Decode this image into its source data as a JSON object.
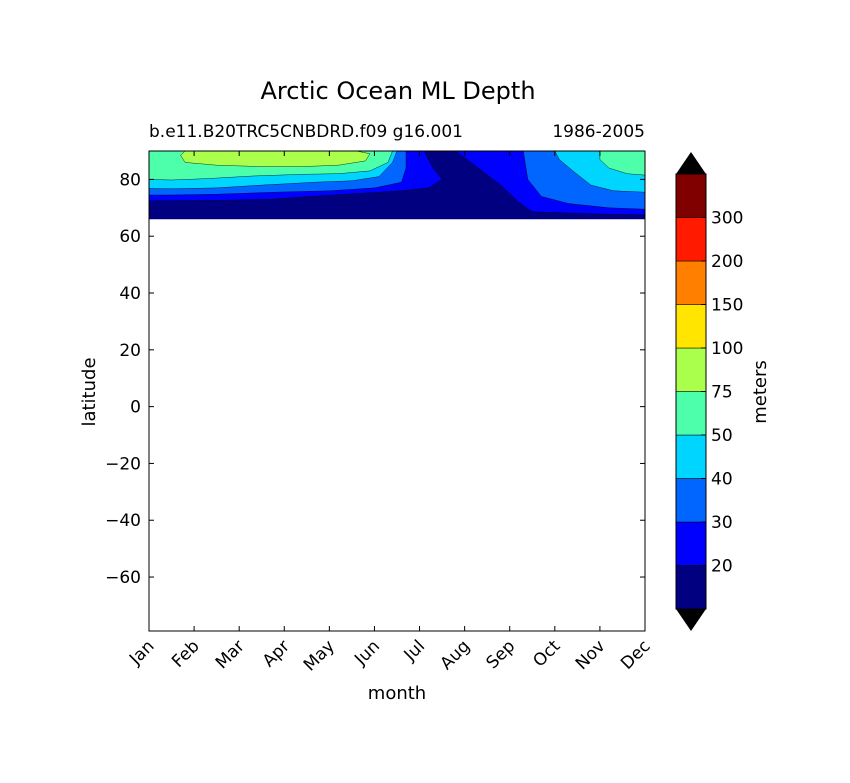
{
  "chart_data": {
    "type": "heatmap",
    "title": "Arctic Ocean ML Depth",
    "subtitle_left": "b.e11.B20TRC5CNBDRD.f09 g16.001",
    "subtitle_right": "1986-2005",
    "xlabel": "month",
    "ylabel": "latitude",
    "x_categories": [
      "Jan",
      "Feb",
      "Mar",
      "Apr",
      "May",
      "Jun",
      "Jul",
      "Aug",
      "Sep",
      "Oct",
      "Nov",
      "Dec"
    ],
    "ylim": [
      -79,
      90
    ],
    "yticks": [
      80,
      60,
      40,
      20,
      0,
      -20,
      -40,
      -60
    ],
    "ytick_labels": [
      "80",
      "60",
      "40",
      "20",
      "0",
      "−20",
      "−40",
      "−60"
    ],
    "colorbar": {
      "label": "meters",
      "levels": [
        10,
        20,
        30,
        40,
        50,
        75,
        100,
        150,
        200,
        300,
        400
      ],
      "tick_labels": [
        "20",
        "30",
        "40",
        "50",
        "75",
        "100",
        "150",
        "200",
        "300"
      ],
      "colors": [
        "#000080",
        "#0000ff",
        "#0066ff",
        "#00d5ff",
        "#4dffaa",
        "#aaff4d",
        "#ffe500",
        "#ff8000",
        "#ff1a00",
        "#800000"
      ],
      "extend": "both"
    },
    "data_lat_range": [
      66,
      90
    ],
    "contour_bands": [
      {
        "level": "10-20",
        "color": "#000080",
        "boundary": [
          [
            0,
            90
          ],
          [
            11,
            90
          ],
          [
            11,
            66
          ],
          [
            0,
            66
          ]
        ]
      },
      {
        "level": "20-30",
        "color": "#0000ff",
        "boundary": [
          [
            0,
            90
          ],
          [
            6.1,
            90
          ],
          [
            6.3,
            84
          ],
          [
            6.5,
            80
          ],
          [
            6.2,
            77
          ],
          [
            5.6,
            76
          ],
          [
            4.6,
            75
          ],
          [
            3.6,
            74
          ],
          [
            2.7,
            73
          ],
          [
            1.5,
            72.6
          ],
          [
            0.5,
            72.5
          ],
          [
            0,
            72.5
          ]
        ]
      },
      {
        "level": "20-30 right",
        "color": "#0000ff",
        "boundary": [
          [
            6.8,
            90
          ],
          [
            11,
            90
          ],
          [
            11,
            67.5
          ],
          [
            10,
            67.8
          ],
          [
            9.2,
            68.2
          ],
          [
            8.5,
            68.6
          ],
          [
            8.2,
            72
          ],
          [
            7.8,
            78
          ],
          [
            7.3,
            84
          ]
        ]
      },
      {
        "level": "30-40",
        "color": "#0066ff",
        "boundary": [
          [
            0,
            90
          ],
          [
            5.7,
            90
          ],
          [
            5.7,
            84
          ],
          [
            5.6,
            79
          ],
          [
            5.0,
            77
          ],
          [
            4.0,
            76
          ],
          [
            2.8,
            75.5
          ],
          [
            1.5,
            74.8
          ],
          [
            0.5,
            74.5
          ],
          [
            0,
            74.5
          ]
        ]
      },
      {
        "level": "30-40 right",
        "color": "#0066ff",
        "boundary": [
          [
            8.3,
            90
          ],
          [
            11,
            90
          ],
          [
            11,
            69.5
          ],
          [
            10.2,
            70
          ],
          [
            9.3,
            71.5
          ],
          [
            8.7,
            74
          ],
          [
            8.4,
            80
          ]
        ]
      },
      {
        "level": "40-50",
        "color": "#00d5ff",
        "boundary": [
          [
            0,
            90
          ],
          [
            5.5,
            90
          ],
          [
            5.4,
            86
          ],
          [
            5.1,
            81
          ],
          [
            4.5,
            79.5
          ],
          [
            3.7,
            79
          ],
          [
            2.5,
            78
          ],
          [
            1.5,
            77
          ],
          [
            0.5,
            76.7
          ],
          [
            0,
            76.8
          ]
        ]
      },
      {
        "level": "40-50 right",
        "color": "#00d5ff",
        "boundary": [
          [
            9.0,
            90
          ],
          [
            11,
            90
          ],
          [
            11,
            75.5
          ],
          [
            10.3,
            76
          ],
          [
            9.8,
            78
          ],
          [
            9.4,
            83
          ],
          [
            9.1,
            87
          ]
        ]
      },
      {
        "level": "50-75",
        "color": "#4dffaa",
        "boundary": [
          [
            0,
            90
          ],
          [
            5.4,
            90
          ],
          [
            5.3,
            86
          ],
          [
            4.9,
            83
          ],
          [
            4.2,
            82
          ],
          [
            3.4,
            81.8
          ],
          [
            2.3,
            81.2
          ],
          [
            1.3,
            80.3
          ],
          [
            0.5,
            79.8
          ],
          [
            0,
            80
          ]
        ]
      },
      {
        "level": "50-75 right",
        "color": "#4dffaa",
        "boundary": [
          [
            10.0,
            90
          ],
          [
            11,
            90
          ],
          [
            11,
            81.5
          ],
          [
            10.6,
            82
          ],
          [
            10.2,
            84
          ],
          [
            10.0,
            87
          ]
        ]
      },
      {
        "level": "75-100",
        "color": "#aaff4d",
        "boundary": [
          [
            0.8,
            90
          ],
          [
            4.6,
            90
          ],
          [
            4.9,
            89
          ],
          [
            4.8,
            86.5
          ],
          [
            4.2,
            85
          ],
          [
            3.4,
            84.5
          ],
          [
            2.5,
            84.5
          ],
          [
            1.5,
            85
          ],
          [
            0.8,
            86
          ],
          [
            0.7,
            88.5
          ]
        ]
      }
    ]
  }
}
